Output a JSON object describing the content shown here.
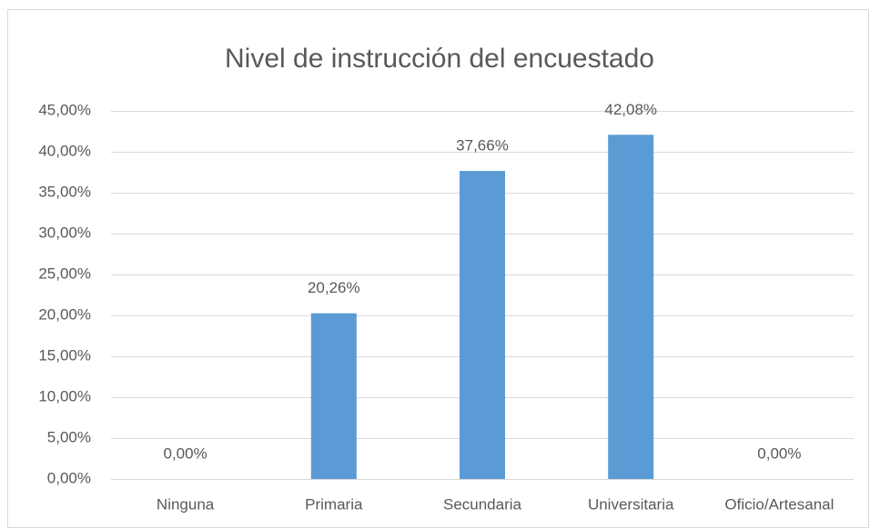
{
  "chart_data": {
    "type": "bar",
    "title": "Nivel de instrucción del encuestado",
    "categories": [
      "Ninguna",
      "Primaria",
      "Secundaria",
      "Universitaria",
      "Oficio/Artesanal"
    ],
    "values": [
      0,
      20.26,
      37.66,
      42.08,
      0
    ],
    "value_labels": [
      "0,00%",
      "20,26%",
      "37,66%",
      "42,08%",
      "0,00%"
    ],
    "color": "#5b9bd5",
    "ylim": [
      0,
      45
    ],
    "yticks": [
      {
        "value": 0,
        "label": "0,00%"
      },
      {
        "value": 5,
        "label": "5,00%"
      },
      {
        "value": 10,
        "label": "10,00%"
      },
      {
        "value": 15,
        "label": "15,00%"
      },
      {
        "value": 20,
        "label": "20,00%"
      },
      {
        "value": 25,
        "label": "25,00%"
      },
      {
        "value": 30,
        "label": "30,00%"
      },
      {
        "value": 35,
        "label": "35,00%"
      },
      {
        "value": 40,
        "label": "40,00%"
      },
      {
        "value": 45,
        "label": "45,00%"
      }
    ],
    "grid": true
  }
}
